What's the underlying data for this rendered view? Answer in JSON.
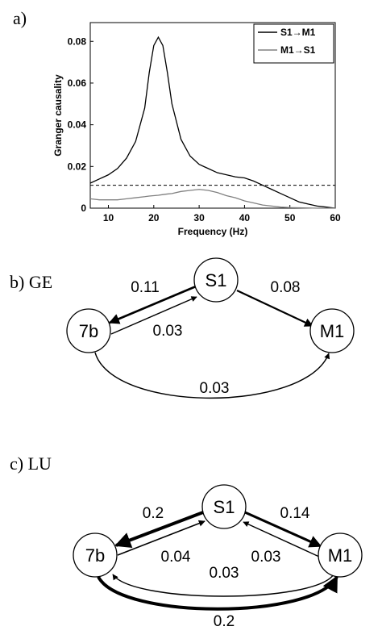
{
  "panel_label": "a)",
  "chart_data": {
    "type": "line",
    "x_label": "Frequency (Hz)",
    "y_label": "Granger causality",
    "x": [
      6,
      8,
      10,
      12,
      14,
      16,
      18,
      19,
      20,
      21,
      22,
      23,
      24,
      26,
      28,
      30,
      32,
      34,
      36,
      38,
      40,
      42,
      44,
      46,
      48,
      50,
      52,
      54,
      56,
      58,
      60
    ],
    "series": [
      {
        "name": "S1→M1",
        "color": "#000000",
        "values": [
          0.012,
          0.014,
          0.016,
          0.019,
          0.024,
          0.032,
          0.048,
          0.065,
          0.078,
          0.082,
          0.078,
          0.065,
          0.05,
          0.033,
          0.025,
          0.021,
          0.019,
          0.017,
          0.016,
          0.015,
          0.0145,
          0.013,
          0.011,
          0.009,
          0.007,
          0.005,
          0.003,
          0.002,
          0.001,
          0.0005,
          0
        ]
      },
      {
        "name": "M1→S1",
        "color": "#808080",
        "values": [
          0.0045,
          0.004,
          0.004,
          0.004,
          0.0045,
          0.005,
          0.0055,
          0.0058,
          0.006,
          0.0062,
          0.0065,
          0.0068,
          0.007,
          0.008,
          0.0085,
          0.009,
          0.0085,
          0.0075,
          0.006,
          0.005,
          0.0035,
          0.0025,
          0.0015,
          0.001,
          0.0005,
          0.0003,
          0.0002,
          0.0001,
          0,
          0,
          0
        ]
      }
    ],
    "threshold_line": 0.011,
    "xlim": [
      6,
      60
    ],
    "xticks": [
      10,
      20,
      30,
      40,
      50,
      60
    ],
    "ylim": [
      0,
      0.089
    ],
    "yticks": [
      0,
      0.02,
      0.04,
      0.06,
      0.08
    ],
    "legend": "upper right"
  },
  "diagrams": [
    {
      "label": "b) GE",
      "nodes": [
        {
          "label": "S1"
        },
        {
          "label": "7b"
        },
        {
          "label": "M1"
        }
      ],
      "edges": [
        {
          "value": 0.11
        },
        {
          "value": 0.03
        },
        {
          "value": 0.08
        },
        {
          "value": 0.03
        }
      ]
    },
    {
      "label": "c) LU",
      "nodes": [
        {
          "label": "S1"
        },
        {
          "label": "7b"
        },
        {
          "label": "M1"
        }
      ],
      "edges": [
        {
          "value": 0.2
        },
        {
          "value": 0.04
        },
        {
          "value": 0.14
        },
        {
          "value": 0.03
        },
        {
          "value": 0.2
        },
        {
          "value": 0.03
        }
      ]
    }
  ]
}
